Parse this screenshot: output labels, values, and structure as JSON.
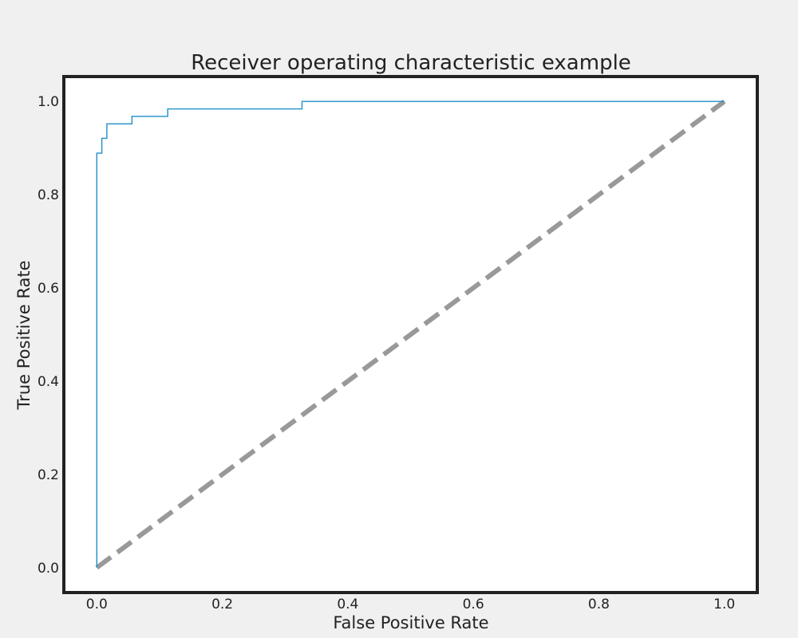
{
  "chart_data": {
    "type": "line",
    "title": "Receiver operating characteristic example",
    "xlabel": "False Positive Rate",
    "ylabel": "True Positive Rate",
    "xlim": [
      -0.05,
      1.05
    ],
    "ylim": [
      -0.05,
      1.05
    ],
    "xticks": [
      "0.0",
      "0.2",
      "0.4",
      "0.6",
      "0.8",
      "1.0"
    ],
    "yticks": [
      "0.0",
      "0.2",
      "0.4",
      "0.6",
      "0.8",
      "1.0"
    ],
    "grid": false,
    "series": [
      {
        "style": "solid",
        "color": "#1f8fc7",
        "x": [
          0.0,
          0.0,
          0.008,
          0.008,
          0.016,
          0.016,
          0.056,
          0.056,
          0.113,
          0.113,
          0.327,
          0.327,
          1.0
        ],
        "y": [
          0.0,
          0.889,
          0.889,
          0.921,
          0.921,
          0.952,
          0.952,
          0.968,
          0.968,
          0.984,
          0.984,
          1.0,
          1.0
        ]
      },
      {
        "style": "dashed",
        "color": "#999999",
        "x": [
          0.0,
          1.0
        ],
        "y": [
          0.0,
          1.0
        ]
      }
    ]
  }
}
